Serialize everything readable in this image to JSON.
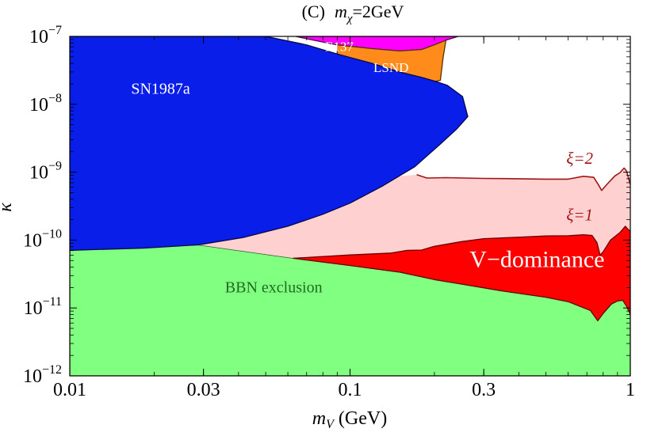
{
  "chart_data": {
    "type": "area",
    "title": {
      "prefix": "(C)",
      "var": "m",
      "sub": "χ",
      "rest": "=2GeV"
    },
    "xlabel": {
      "var": "m",
      "sub": "V",
      "rest": " (GeV)"
    },
    "ylabel": "κ",
    "x_scale": "log",
    "y_scale": "log",
    "xlim": [
      0.01,
      1
    ],
    "ylim": [
      1e-12,
      1e-07
    ],
    "x_ticks": [
      {
        "value": 0.01,
        "label": "0.01"
      },
      {
        "value": 0.03,
        "label": "0.03"
      },
      {
        "value": 0.1,
        "label": "0.1"
      },
      {
        "value": 0.3,
        "label": "0.3"
      },
      {
        "value": 1,
        "label": "1"
      }
    ],
    "y_ticks": [
      {
        "value": 1e-07,
        "base": "10",
        "exp": "−7"
      },
      {
        "value": 1e-08,
        "base": "10",
        "exp": "−8"
      },
      {
        "value": 1e-09,
        "base": "10",
        "exp": "−9"
      },
      {
        "value": 1e-10,
        "base": "10",
        "exp": "−10"
      },
      {
        "value": 1e-11,
        "base": "10",
        "exp": "−11"
      },
      {
        "value": 1e-12,
        "base": "10",
        "exp": "−12"
      }
    ],
    "regions": [
      {
        "name": "BBN exclusion",
        "label": "BBN exclusion",
        "fill": "#80ff80",
        "stroke": "#2e5e2e",
        "label_color": "#1f6b1f",
        "label_at": [
          0.0534,
          1.7e-11
        ],
        "label_size": 20,
        "points": [
          [
            0.01,
            1e-12
          ],
          [
            0.01,
            7.08e-11
          ],
          [
            0.0288,
            8.51e-11
          ],
          [
            0.06,
            5.55e-11
          ],
          [
            0.1,
            4.23e-11
          ],
          [
            0.15,
            3.38e-11
          ],
          [
            0.2,
            2.62e-11
          ],
          [
            0.25,
            2.25e-11
          ],
          [
            0.35,
            1.78e-11
          ],
          [
            0.5,
            1.44e-11
          ],
          [
            0.6,
            1.24e-11
          ],
          [
            0.72,
            9.2e-12
          ],
          [
            0.765,
            6.5e-12
          ],
          [
            0.8,
            8.3e-12
          ],
          [
            0.855,
            1.14e-11
          ],
          [
            0.9,
            1.27e-11
          ],
          [
            0.94,
            1.3e-11
          ],
          [
            0.97,
            1.06e-11
          ],
          [
            1,
            8.1e-12
          ],
          [
            1,
            1e-12
          ]
        ]
      },
      {
        "name": "V-dominance band",
        "label": "",
        "fill": "#ffd0d0",
        "stroke": "none",
        "points": [
          [
            0.0288,
            8.51e-11
          ],
          [
            0.06,
            5.55e-11
          ],
          [
            0.1,
            4.23e-11
          ],
          [
            0.15,
            3.38e-11
          ],
          [
            0.2,
            2.62e-11
          ],
          [
            0.25,
            2.25e-11
          ],
          [
            0.35,
            1.78e-11
          ],
          [
            0.5,
            1.44e-11
          ],
          [
            0.6,
            1.24e-11
          ],
          [
            0.72,
            9.2e-12
          ],
          [
            0.765,
            6.5e-12
          ],
          [
            0.8,
            8.3e-12
          ],
          [
            0.855,
            1.14e-11
          ],
          [
            0.9,
            1.27e-11
          ],
          [
            0.94,
            1.3e-11
          ],
          [
            0.97,
            1.06e-11
          ],
          [
            1,
            8.1e-12
          ],
          [
            1,
            6.6e-10
          ],
          [
            0.97,
            1.04e-09
          ],
          [
            0.95,
            1.15e-09
          ],
          [
            0.92,
            9.9e-10
          ],
          [
            0.88,
            8.8e-10
          ],
          [
            0.83,
            6.8e-10
          ],
          [
            0.79,
            5.4e-10
          ],
          [
            0.77,
            6.5e-10
          ],
          [
            0.74,
            8.4e-10
          ],
          [
            0.68,
            8.7e-10
          ],
          [
            0.6,
            7.9e-10
          ],
          [
            0.5,
            7.9e-10
          ],
          [
            0.4,
            8e-10
          ],
          [
            0.3,
            8.1e-10
          ],
          [
            0.22,
            8.3e-10
          ],
          [
            0.188,
            8.2e-10
          ],
          [
            0.173,
            9.2e-10
          ],
          [
            0.155,
            8.8e-10
          ],
          [
            0.12,
            8.2e-10
          ],
          [
            0.1,
            6.6e-10
          ],
          [
            0.08,
            4.1e-10
          ],
          [
            0.06,
            2e-10
          ],
          [
            0.045,
            1.25e-10
          ],
          [
            0.0288,
            8.51e-11
          ]
        ]
      },
      {
        "name": "V-dominance core",
        "label": "V−dominance",
        "fill": "#ff0000",
        "stroke": "#6b0000",
        "label_color": "#ffffff",
        "label_at": [
          0.465,
          4e-11
        ],
        "label_size": 30,
        "points": [
          [
            0.0627,
            5.4e-11
          ],
          [
            0.1,
            6.03e-11
          ],
          [
            0.14,
            6.44e-11
          ],
          [
            0.16,
            7.05e-11
          ],
          [
            0.18,
            7.14e-11
          ],
          [
            0.2,
            8.1e-11
          ],
          [
            0.25,
            9.5e-11
          ],
          [
            0.3,
            1.05e-10
          ],
          [
            0.4,
            1.1e-10
          ],
          [
            0.5,
            1.15e-10
          ],
          [
            0.6,
            1.16e-10
          ],
          [
            0.68,
            1.2e-10
          ],
          [
            0.73,
            1.17e-10
          ],
          [
            0.76,
            9.2e-11
          ],
          [
            0.78,
            6e-11
          ],
          [
            0.8,
            6.7e-11
          ],
          [
            0.85,
            1e-10
          ],
          [
            0.92,
            1.3e-10
          ],
          [
            0.96,
            1.6e-10
          ],
          [
            0.98,
            1.45e-10
          ],
          [
            1,
            1.35e-10
          ],
          [
            1,
            8.1e-12
          ],
          [
            0.97,
            1.06e-11
          ],
          [
            0.94,
            1.3e-11
          ],
          [
            0.9,
            1.27e-11
          ],
          [
            0.855,
            1.14e-11
          ],
          [
            0.8,
            8.3e-12
          ],
          [
            0.765,
            6.5e-12
          ],
          [
            0.72,
            9.2e-12
          ],
          [
            0.6,
            1.24e-11
          ],
          [
            0.5,
            1.44e-11
          ],
          [
            0.35,
            1.78e-11
          ],
          [
            0.25,
            2.25e-11
          ],
          [
            0.2,
            2.62e-11
          ],
          [
            0.15,
            3.38e-11
          ],
          [
            0.1,
            4.23e-11
          ]
        ]
      },
      {
        "name": "E137",
        "label": "E137",
        "fill": "#ff00ff",
        "stroke": "#4a0a4a",
        "label_color": "#ffffff",
        "label_at": [
          0.0916,
          6.1e-08
        ],
        "label_size": 17,
        "points": [
          [
            0.064,
            1e-07
          ],
          [
            0.074,
            8.8e-08
          ],
          [
            0.09,
            7.5e-08
          ],
          [
            0.12,
            6.6e-08
          ],
          [
            0.15,
            6.1e-08
          ],
          [
            0.18,
            6.4e-08
          ],
          [
            0.2,
            7.5e-08
          ],
          [
            0.22,
            8.8e-08
          ],
          [
            0.243,
            1e-07
          ]
        ]
      },
      {
        "name": "LSND",
        "label": "LSND",
        "fill": "#ff8c1a",
        "stroke": "#5a2e00",
        "label_color": "#ffffff",
        "label_at": [
          0.14,
          3e-08
        ],
        "label_size": 17,
        "points": [
          [
            0.09,
            7.5e-08
          ],
          [
            0.09,
            4.8e-08
          ],
          [
            0.1,
            3.4e-08
          ],
          [
            0.12,
            2.5e-08
          ],
          [
            0.15,
            2.1e-08
          ],
          [
            0.18,
            2e-08
          ],
          [
            0.21,
            2.25e-08
          ],
          [
            0.215,
            5e-08
          ],
          [
            0.22,
            8.8e-08
          ],
          [
            0.2,
            7.5e-08
          ],
          [
            0.18,
            6.4e-08
          ],
          [
            0.15,
            6.1e-08
          ],
          [
            0.12,
            6.6e-08
          ]
        ]
      },
      {
        "name": "SN1987a",
        "label": "SN1987a",
        "fill": "#0a1eea",
        "stroke": "#08084a",
        "label_color": "#ffffff",
        "label_at": [
          0.0211,
          1.43e-08
        ],
        "label_size": 20,
        "points": [
          [
            0.01,
            1e-07
          ],
          [
            0.01,
            7.08e-11
          ],
          [
            0.0183,
            7.6e-11
          ],
          [
            0.0288,
            8.51e-11
          ],
          [
            0.042,
            1.1e-10
          ],
          [
            0.06,
            1.6e-10
          ],
          [
            0.08,
            2.4e-10
          ],
          [
            0.1,
            3.5e-10
          ],
          [
            0.13,
            6.2e-10
          ],
          [
            0.17,
            1.2e-09
          ],
          [
            0.21,
            2.6e-09
          ],
          [
            0.24,
            4.3e-09
          ],
          [
            0.263,
            6.6e-09
          ],
          [
            0.252,
            1.3e-08
          ],
          [
            0.222,
            1.91e-08
          ],
          [
            0.2,
            2.2e-08
          ],
          [
            0.18,
            2.5e-08
          ],
          [
            0.15,
            3e-08
          ],
          [
            0.12,
            4e-08
          ],
          [
            0.09,
            5.5e-08
          ],
          [
            0.07,
            7.5e-08
          ],
          [
            0.05,
            1e-07
          ]
        ]
      }
    ],
    "contours": [
      {
        "name": "xi-2",
        "label": "ξ=2",
        "color": "#a01414",
        "label_at": [
          0.66,
          1.33e-09
        ],
        "points": [
          [
            0.173,
            9.2e-10
          ],
          [
            0.188,
            8.2e-10
          ],
          [
            0.22,
            8.3e-10
          ],
          [
            0.3,
            8.1e-10
          ],
          [
            0.4,
            8e-10
          ],
          [
            0.5,
            7.9e-10
          ],
          [
            0.6,
            7.9e-10
          ],
          [
            0.68,
            8.7e-10
          ],
          [
            0.74,
            8.4e-10
          ],
          [
            0.77,
            6.5e-10
          ],
          [
            0.79,
            5.4e-10
          ],
          [
            0.83,
            6.8e-10
          ],
          [
            0.88,
            8.8e-10
          ],
          [
            0.92,
            9.9e-10
          ],
          [
            0.95,
            1.15e-09
          ],
          [
            0.97,
            1.04e-09
          ],
          [
            1,
            6.6e-10
          ]
        ]
      },
      {
        "name": "xi-1",
        "label": "ξ=1",
        "color": "#a01414",
        "label_at": [
          0.66,
          1.95e-10
        ],
        "points": []
      }
    ]
  }
}
